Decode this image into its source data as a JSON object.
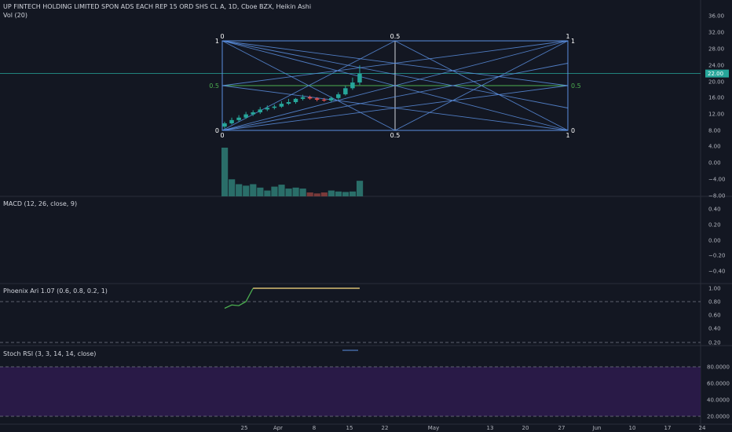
{
  "header": {
    "symbol_line": "UP FINTECH HOLDING LIMITED SPON ADS EACH REP 15 ORD SHS CL A, 1D, Cboe BZX, Heikin Ashi",
    "volume_label": "Vol (20)"
  },
  "panes": {
    "macd_label": "MACD (12, 26, close, 9)",
    "phoenix_label": "Phoenix Ari 1.07 (0.6, 0.8, 0.2, 1)",
    "stoch_label": "Stoch RSI (3, 3, 14, 14, close)"
  },
  "price_axis": {
    "ticks": [
      "36.00",
      "32.00",
      "28.00",
      "24.00",
      "20.00",
      "16.00",
      "12.00",
      "8.00",
      "4.00",
      "0.00",
      "−4.00",
      "−8.00"
    ],
    "current_price": "22.00"
  },
  "macd_axis": {
    "ticks": [
      "0.40",
      "0.20",
      "0.00",
      "−0.20",
      "−0.40"
    ]
  },
  "phoenix_axis": {
    "ticks": [
      "1.00",
      "0.80",
      "0.60",
      "0.40",
      "0.20"
    ]
  },
  "stoch_axis": {
    "ticks": [
      "80.0000",
      "60.0000",
      "40.0000",
      "20.0000"
    ]
  },
  "time_axis": {
    "ticks": [
      "25",
      "Apr",
      "8",
      "15",
      "22",
      "May",
      "13",
      "20",
      "27",
      "Jun",
      "10",
      "17",
      "24"
    ]
  },
  "gann_box": {
    "top_labels": [
      "0",
      "0.5",
      "1"
    ],
    "bottom_labels": [
      "0",
      "0.5",
      "1"
    ],
    "left_labels": [
      "1",
      "0.5",
      "0"
    ],
    "right_labels": [
      "1",
      "0.5",
      "0"
    ]
  },
  "colors": {
    "background": "#131722",
    "grid_line": "#2a2e39",
    "up": "#26a69a",
    "down": "#ef5350",
    "gann_lines": "#5b8fe0",
    "mid_line": "#4caf50",
    "price_label_bg": "#26a69a",
    "stoch_band": "#2a1a4a",
    "phoenix_green": "#4caf50",
    "phoenix_yellow": "#ffe082"
  },
  "chart_data": {
    "type": "candlestick",
    "candles": [
      {
        "o": 9.0,
        "h": 10.2,
        "l": 8.5,
        "c": 9.8
      },
      {
        "o": 9.8,
        "h": 11.2,
        "l": 9.5,
        "c": 10.6
      },
      {
        "o": 10.6,
        "h": 11.8,
        "l": 10.2,
        "c": 11.2
      },
      {
        "o": 11.2,
        "h": 12.6,
        "l": 10.9,
        "c": 12.0
      },
      {
        "o": 12.0,
        "h": 13.0,
        "l": 11.6,
        "c": 12.5
      },
      {
        "o": 12.5,
        "h": 13.8,
        "l": 12.1,
        "c": 13.2
      },
      {
        "o": 13.2,
        "h": 14.2,
        "l": 12.8,
        "c": 13.6
      },
      {
        "o": 13.6,
        "h": 14.4,
        "l": 13.2,
        "c": 13.9
      },
      {
        "o": 13.9,
        "h": 15.2,
        "l": 13.6,
        "c": 14.6
      },
      {
        "o": 14.6,
        "h": 15.8,
        "l": 14.3,
        "c": 15.0
      },
      {
        "o": 15.0,
        "h": 16.0,
        "l": 14.6,
        "c": 15.8
      },
      {
        "o": 15.8,
        "h": 16.8,
        "l": 15.4,
        "c": 16.2
      },
      {
        "o": 16.2,
        "h": 16.6,
        "l": 15.6,
        "c": 15.9
      },
      {
        "o": 15.9,
        "h": 16.2,
        "l": 15.2,
        "c": 15.6
      },
      {
        "o": 15.6,
        "h": 16.0,
        "l": 15.1,
        "c": 15.4
      },
      {
        "o": 15.4,
        "h": 16.4,
        "l": 15.0,
        "c": 16.0
      },
      {
        "o": 16.0,
        "h": 17.4,
        "l": 15.6,
        "c": 16.9
      },
      {
        "o": 16.9,
        "h": 19.0,
        "l": 16.6,
        "c": 18.4
      },
      {
        "o": 18.4,
        "h": 21.0,
        "l": 18.0,
        "c": 19.8
      },
      {
        "o": 19.8,
        "h": 24.0,
        "l": 19.2,
        "c": 22.0
      }
    ],
    "volume_relative": [
      1.0,
      0.35,
      0.25,
      0.22,
      0.25,
      0.18,
      0.12,
      0.2,
      0.24,
      0.16,
      0.18,
      0.16,
      0.08,
      0.06,
      0.08,
      0.12,
      0.1,
      0.09,
      0.1,
      0.32
    ],
    "volume_down": [
      false,
      false,
      false,
      false,
      false,
      false,
      false,
      false,
      false,
      false,
      false,
      false,
      true,
      true,
      true,
      false,
      false,
      false,
      false,
      false
    ],
    "phoenix": [
      0.7,
      0.75,
      0.74,
      0.8,
      1.0,
      1.0,
      1.0,
      1.0,
      1.0,
      1.0,
      1.0,
      1.0,
      1.0,
      1.0,
      1.0,
      1.0,
      1.0,
      1.0,
      1.0,
      1.0
    ]
  }
}
